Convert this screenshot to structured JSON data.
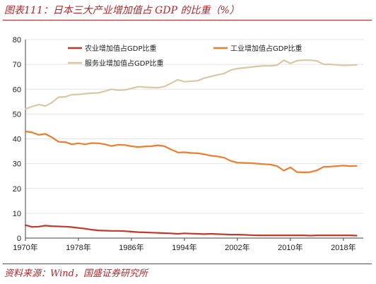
{
  "caption": "图表111：日本三大产业增加值占 GDP 的比重（%）",
  "source": "资料来源：Wind，国盛证券研究所",
  "chart_data": {
    "type": "line",
    "ylim": [
      0,
      80
    ],
    "yticks": [
      0,
      10,
      20,
      30,
      40,
      50,
      60,
      70,
      80
    ],
    "xlim": [
      1970,
      2021
    ],
    "xticks": [
      1970,
      1978,
      1986,
      1994,
      2002,
      2010,
      2018
    ],
    "xtick_labels": [
      "1970年",
      "1978年",
      "1986年",
      "1994年",
      "2002年",
      "2010年",
      "2018年"
    ],
    "x": [
      1970,
      1971,
      1972,
      1973,
      1974,
      1975,
      1976,
      1977,
      1978,
      1979,
      1980,
      1981,
      1982,
      1983,
      1984,
      1985,
      1986,
      1987,
      1988,
      1989,
      1990,
      1991,
      1992,
      1993,
      1994,
      1995,
      1996,
      1997,
      1998,
      1999,
      2000,
      2001,
      2002,
      2003,
      2004,
      2005,
      2006,
      2007,
      2008,
      2009,
      2010,
      2011,
      2012,
      2013,
      2014,
      2015,
      2016,
      2017,
      2018,
      2019,
      2020
    ],
    "legend_position": "top",
    "series": [
      {
        "name": "农业增加值占GDP比重",
        "color": "#c0392b",
        "values": [
          5.2,
          4.5,
          4.6,
          5.0,
          4.8,
          4.7,
          4.6,
          4.4,
          4.1,
          3.8,
          3.4,
          3.1,
          3.0,
          2.9,
          2.9,
          2.8,
          2.6,
          2.4,
          2.3,
          2.2,
          2.1,
          2.0,
          1.9,
          1.7,
          1.9,
          1.8,
          1.7,
          1.6,
          1.7,
          1.6,
          1.5,
          1.4,
          1.4,
          1.3,
          1.2,
          1.1,
          1.1,
          1.1,
          1.1,
          1.1,
          1.1,
          1.1,
          1.1,
          1.0,
          1.1,
          1.1,
          1.1,
          1.1,
          1.1,
          1.1,
          1.0
        ]
      },
      {
        "name": "工业增加值占GDP比重",
        "color": "#ed7d31",
        "values": [
          43.0,
          42.6,
          41.6,
          42.0,
          40.6,
          38.8,
          38.7,
          37.8,
          38.2,
          37.8,
          38.3,
          38.2,
          37.8,
          37.1,
          37.6,
          37.5,
          37.0,
          36.7,
          36.9,
          37.0,
          37.4,
          37.0,
          35.7,
          34.5,
          34.6,
          34.3,
          34.2,
          33.8,
          33.2,
          32.9,
          32.4,
          31.1,
          30.4,
          30.3,
          30.2,
          30.0,
          29.8,
          29.6,
          29.0,
          27.2,
          28.5,
          26.6,
          26.5,
          26.6,
          27.3,
          28.7,
          28.8,
          29.0,
          29.2,
          29.0,
          29.1
        ]
      },
      {
        "name": "服务业增加值占GDP比重",
        "color": "#dcc6a3",
        "values": [
          52.0,
          53.0,
          53.8,
          53.2,
          54.6,
          56.8,
          56.9,
          57.8,
          57.9,
          58.2,
          58.4,
          58.5,
          59.2,
          60.0,
          59.6,
          59.7,
          60.3,
          61.0,
          60.8,
          60.7,
          60.6,
          61.1,
          62.4,
          63.8,
          63.0,
          63.2,
          63.4,
          64.5,
          65.1,
          65.8,
          66.3,
          67.7,
          68.3,
          68.6,
          68.9,
          69.2,
          69.4,
          69.4,
          69.7,
          71.7,
          70.4,
          71.5,
          71.7,
          71.7,
          71.4,
          70.0,
          70.0,
          69.8,
          69.6,
          69.7,
          69.8
        ]
      }
    ]
  }
}
